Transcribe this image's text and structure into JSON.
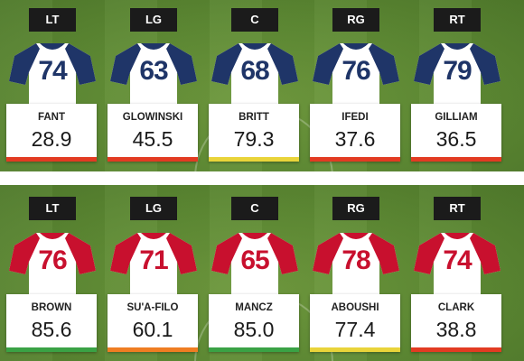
{
  "top_line": {
    "colors": {
      "sleeve": "#1f3568",
      "body": "#ffffff",
      "number": "#1f3568"
    },
    "players": [
      {
        "position": "LT",
        "number": "74",
        "name": "FANT",
        "grade": "28.9",
        "grade_color": "#e23b22"
      },
      {
        "position": "LG",
        "number": "63",
        "name": "GLOWINSKI",
        "grade": "45.5",
        "grade_color": "#e23b22"
      },
      {
        "position": "C",
        "number": "68",
        "name": "BRITT",
        "grade": "79.3",
        "grade_color": "#e9d43a"
      },
      {
        "position": "RG",
        "number": "76",
        "name": "IFEDI",
        "grade": "37.6",
        "grade_color": "#e23b22"
      },
      {
        "position": "RT",
        "number": "79",
        "name": "GILLIAM",
        "grade": "36.5",
        "grade_color": "#e23b22"
      }
    ]
  },
  "bottom_line": {
    "colors": {
      "sleeve": "#c8102e",
      "body": "#ffffff",
      "number": "#c8102e"
    },
    "players": [
      {
        "position": "LT",
        "number": "76",
        "name": "BROWN",
        "grade": "85.6",
        "grade_color": "#3aa245"
      },
      {
        "position": "LG",
        "number": "71",
        "name": "SU'A-FILO",
        "grade": "60.1",
        "grade_color": "#ef7d22"
      },
      {
        "position": "C",
        "number": "65",
        "name": "MANCZ",
        "grade": "85.0",
        "grade_color": "#3aa245"
      },
      {
        "position": "RG",
        "number": "78",
        "name": "ABOUSHI",
        "grade": "77.4",
        "grade_color": "#e9d43a"
      },
      {
        "position": "RT",
        "number": "74",
        "name": "CLARK",
        "grade": "38.8",
        "grade_color": "#e23b22"
      }
    ]
  }
}
